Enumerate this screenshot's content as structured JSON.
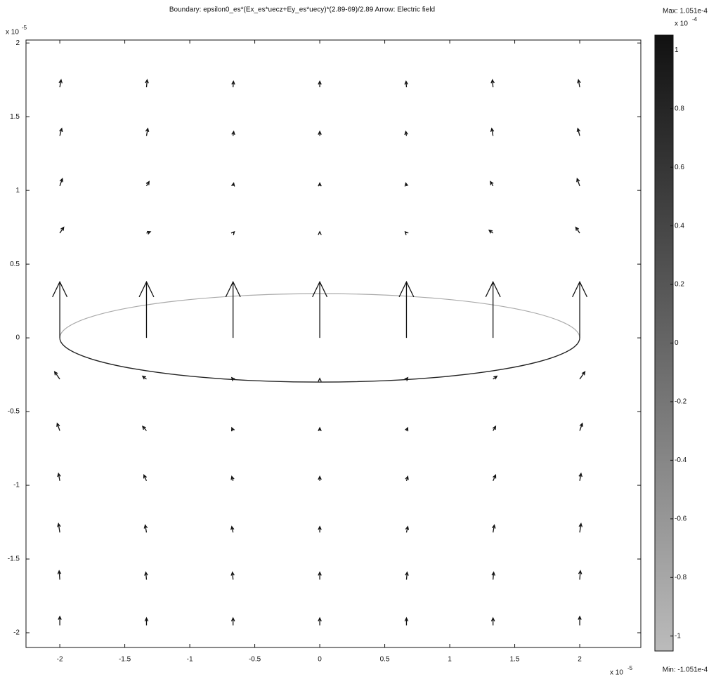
{
  "chart_data": {
    "type": "quiver",
    "title": "Boundary: epsilon0_es*(Ex_es*uecz+Ey_es*uecy)*(2.89-69)/2.89   Arrow: Electric field",
    "xlim": [
      -2.26,
      2.47
    ],
    "ylim": [
      -2.1,
      2.02
    ],
    "xticks": [
      -2,
      -1.5,
      -1,
      -0.5,
      0,
      0.5,
      1,
      1.5,
      2
    ],
    "yticks": [
      -2,
      -1.5,
      -1,
      -0.5,
      0,
      0.5,
      1,
      1.5,
      2
    ],
    "x_multiplier": {
      "base": "x 10",
      "exp": "-5"
    },
    "y_multiplier": {
      "base": "x 10",
      "exp": "-5"
    },
    "grid_x": [
      -2,
      -1.333,
      -0.667,
      0,
      0.667,
      1.333,
      2
    ],
    "grid_y": [
      1.7,
      1.37,
      1.03,
      0.71,
      0,
      -0.28,
      -0.63,
      -0.97,
      -1.32,
      -1.64,
      -1.95
    ],
    "u": [
      [
        0.01,
        0.005,
        0.003,
        0,
        -0.003,
        -0.005,
        -0.01
      ],
      [
        0.015,
        0.01,
        0.005,
        0,
        -0.005,
        -0.01,
        -0.015
      ],
      [
        0.02,
        0.02,
        0.005,
        0,
        -0.005,
        -0.02,
        -0.02
      ],
      [
        0.03,
        0.03,
        0.01,
        0,
        -0.01,
        -0.03,
        -0.03
      ],
      [
        0,
        0,
        0,
        0,
        0,
        0,
        0
      ],
      [
        -0.04,
        -0.03,
        -0.01,
        0,
        0.01,
        0.03,
        0.04
      ],
      [
        -0.02,
        -0.03,
        -0.01,
        0,
        0.01,
        0.02,
        0.02
      ],
      [
        -0.01,
        -0.02,
        -0.01,
        0,
        0.01,
        0.02,
        0.01
      ],
      [
        -0.01,
        -0.01,
        -0.01,
        0,
        0.01,
        0.01,
        0.01
      ],
      [
        -0.005,
        -0.005,
        -0.005,
        0,
        0.005,
        0.005,
        0.005
      ],
      [
        0,
        0,
        0,
        0,
        0,
        0,
        0
      ]
    ],
    "v": [
      [
        0.05,
        0.05,
        0.04,
        0.04,
        0.04,
        0.05,
        0.05
      ],
      [
        0.05,
        0.05,
        0.03,
        0.03,
        0.03,
        0.05,
        0.05
      ],
      [
        0.05,
        0.03,
        0.02,
        0.02,
        0.02,
        0.03,
        0.05
      ],
      [
        0.04,
        0.01,
        0.01,
        0.01,
        0.01,
        0.02,
        0.04
      ],
      [
        0.38,
        0.38,
        0.38,
        0.38,
        0.38,
        0.38,
        0.38
      ],
      [
        0.05,
        0.02,
        0.01,
        0.005,
        0.01,
        0.02,
        0.05
      ],
      [
        0.05,
        0.03,
        0.02,
        0.02,
        0.02,
        0.03,
        0.05
      ],
      [
        0.05,
        0.04,
        0.03,
        0.03,
        0.03,
        0.04,
        0.05
      ],
      [
        0.06,
        0.05,
        0.04,
        0.04,
        0.04,
        0.05,
        0.06
      ],
      [
        0.06,
        0.05,
        0.05,
        0.05,
        0.05,
        0.05,
        0.06
      ],
      [
        0.06,
        0.05,
        0.05,
        0.05,
        0.05,
        0.05,
        0.06
      ]
    ],
    "arrow_color": "#111111",
    "boundary": {
      "cx": 0,
      "cy": 0,
      "rx": 2,
      "ry": 0.3,
      "upper_color": "#aaaaaa",
      "lower_color": "#222222"
    },
    "colorbar": {
      "max_label": "Max: 1.051e-4",
      "min_label": "Min: -1.051e-4",
      "multiplier": {
        "base": "x 10",
        "exp": "-4"
      },
      "clim": [
        -1.051,
        1.051
      ],
      "ticks": [
        -1,
        -0.8,
        -0.6,
        -0.4,
        -0.2,
        0,
        0.2,
        0.4,
        0.6,
        0.8,
        1
      ],
      "colors": [
        "#bbbbbb",
        "#111111"
      ]
    }
  }
}
